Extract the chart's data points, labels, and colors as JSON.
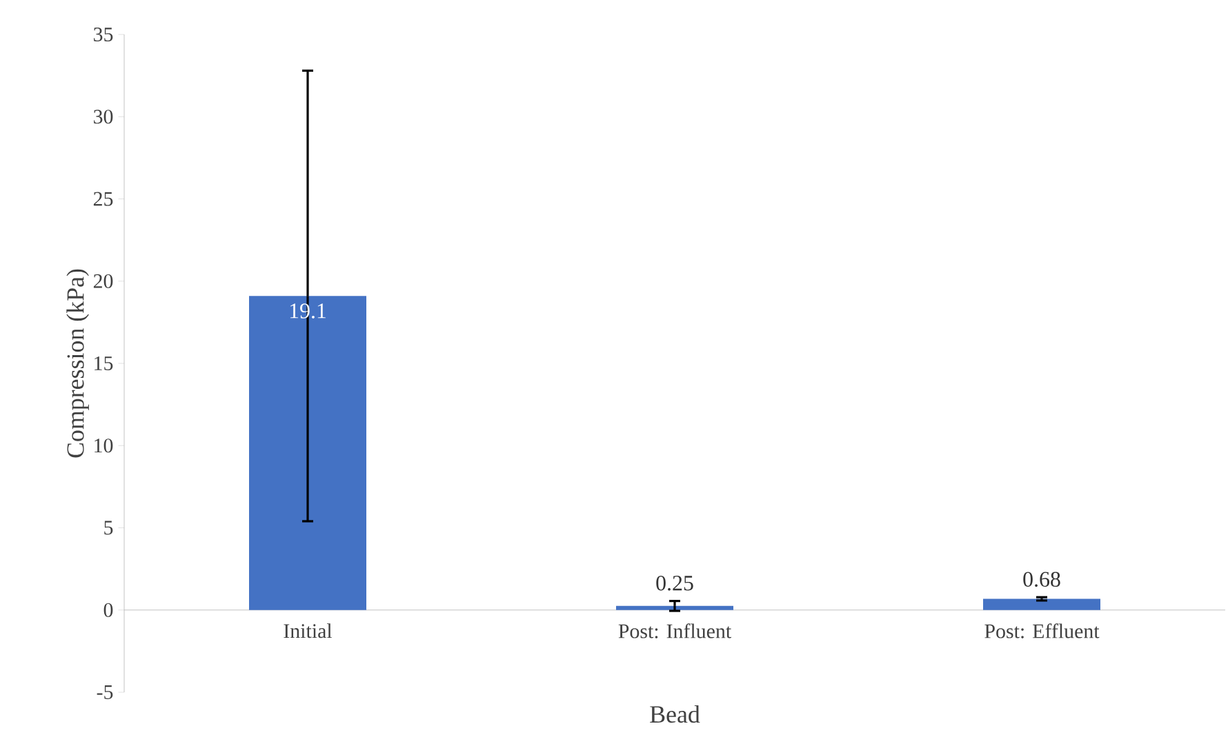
{
  "chart_data": {
    "type": "bar",
    "xlabel": "Bead",
    "ylabel": "Compression (kPa)",
    "categories": [
      "Initial",
      "Post: Influent",
      "Post: Effluent"
    ],
    "values": [
      19.1,
      0.25,
      0.68
    ],
    "errors": [
      13.7,
      0.3,
      0.1
    ],
    "color": "#4472c4",
    "data_labels": true,
    "ylim": [
      -5,
      35
    ],
    "yticks": [
      -5,
      0,
      5,
      10,
      15,
      20,
      25,
      30,
      35
    ],
    "grid": false
  }
}
